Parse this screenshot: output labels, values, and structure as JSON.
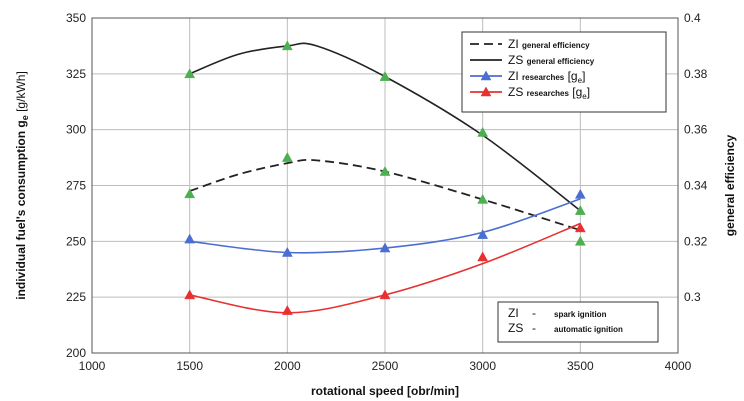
{
  "chart_data": {
    "type": "line",
    "xlabel": "rotational speed [obr/min]",
    "ylabel": "individual fuel's consumption g",
    "ylabel_sub": "e",
    "ylabel_unit": " [g/kWh]",
    "y2label": "general efficiency",
    "xlim": [
      1000,
      4000
    ],
    "ylim": [
      200,
      350
    ],
    "y2lim": [
      0.28,
      0.4
    ],
    "xticks": [
      "1000",
      "1500",
      "2000",
      "2500",
      "3000",
      "3500",
      "4000"
    ],
    "yticks": [
      "200",
      "225",
      "250",
      "275",
      "300",
      "325",
      "350"
    ],
    "y2ticks": [
      "0.3",
      "0.32",
      "0.34",
      "0.36",
      "0.38",
      "0.4"
    ],
    "grid": true,
    "legend_position": "top-right",
    "x": [
      1500,
      2000,
      2500,
      3000,
      3500
    ],
    "series": [
      {
        "name": "ZI",
        "note": "general efficiency",
        "axis": "right",
        "style": "dashed",
        "color": "#222222",
        "curve_x": [
          1500,
          1750,
          2000,
          2150,
          2500,
          3000,
          3500
        ],
        "curve_y": [
          0.338,
          0.344,
          0.348,
          0.349,
          0.345,
          0.335,
          0.324
        ],
        "markers": [
          0.337,
          0.35,
          0.345,
          0.335,
          0.32
        ],
        "marker_color": "#4caf50"
      },
      {
        "name": "ZS",
        "note": "general efficiency",
        "axis": "right",
        "style": "solid",
        "color": "#222222",
        "curve_x": [
          1500,
          1750,
          2000,
          2150,
          2500,
          3000,
          3500
        ],
        "curve_y": [
          0.38,
          0.387,
          0.39,
          0.39,
          0.379,
          0.358,
          0.331
        ],
        "markers": [
          0.38,
          0.39,
          0.379,
          0.359,
          0.331
        ],
        "marker_color": "#4caf50"
      },
      {
        "name": "ZI",
        "note": "researches",
        "note_sym": "g",
        "note_sub": "e",
        "axis": "left",
        "style": "solid",
        "color": "#4a6fd1",
        "curve_x": [
          1500,
          2000,
          2500,
          3000,
          3500
        ],
        "curve_y": [
          250,
          245,
          247,
          254,
          269
        ],
        "markers": [
          251,
          245,
          247,
          253,
          271
        ],
        "marker_color": "#4a6fd1"
      },
      {
        "name": "ZS",
        "note": "researches",
        "note_sym": "g",
        "note_sub": "e",
        "axis": "left",
        "style": "solid",
        "color": "#e83030",
        "curve_x": [
          1500,
          2000,
          2500,
          3000,
          3500
        ],
        "curve_y": [
          226,
          218,
          226,
          240,
          258
        ],
        "markers": [
          226,
          219,
          226,
          243,
          256
        ],
        "marker_color": "#e83030"
      }
    ],
    "note_box": [
      {
        "code": "ZI",
        "dash": "-",
        "text": "spark ignition"
      },
      {
        "code": "ZS",
        "dash": "-",
        "text": "automatic ignition"
      }
    ]
  }
}
